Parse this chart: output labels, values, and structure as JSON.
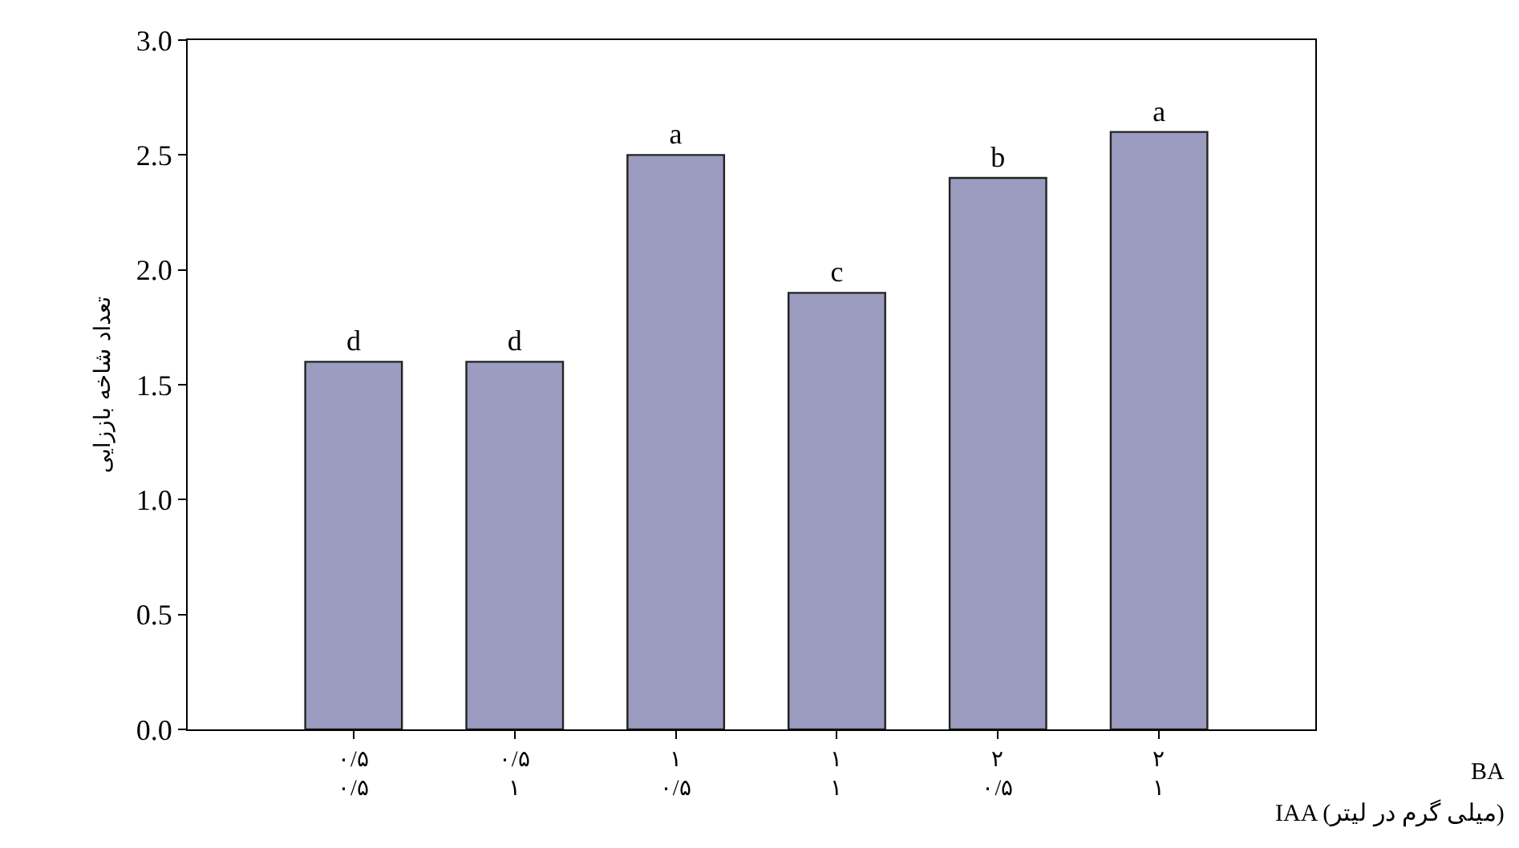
{
  "chart_data": {
    "type": "bar",
    "ylabel": "تعداد شاخه باززایی",
    "categories": [
      "۰/۵\n۰/۵",
      "۰/۵\n۱",
      "۱\n۰/۵",
      "۱\n۱",
      "۲\n۰/۵",
      "۲\n۱"
    ],
    "values": [
      1.6,
      1.6,
      2.5,
      1.9,
      2.4,
      2.6
    ],
    "value_labels": [
      "d",
      "d",
      "a",
      "c",
      "b",
      "a"
    ],
    "color": "#9c9cc0",
    "ylim": [
      0,
      3
    ],
    "yticks": [
      {
        "value": 0,
        "label": "0.0"
      },
      {
        "value": 0.5,
        "label": "0.5"
      },
      {
        "value": 1,
        "label": "1.0"
      },
      {
        "value": 1.5,
        "label": "1.5"
      },
      {
        "value": 2,
        "label": "2.0"
      },
      {
        "value": 2.5,
        "label": "2.5"
      },
      {
        "value": 3,
        "label": "3.0"
      }
    ],
    "annotations": [
      "BA",
      "IAA (میلی گرم در لیتر)"
    ],
    "grid": false
  }
}
